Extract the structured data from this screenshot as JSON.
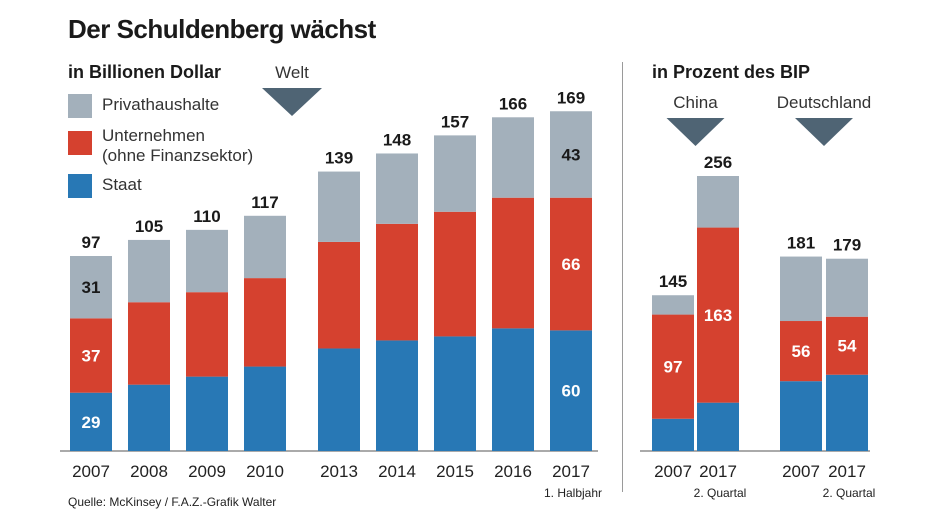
{
  "title": "Der Schuldenberg wächst",
  "source": "Quelle: McKinsey / F.A.Z.-Grafik Walter",
  "colors": {
    "privat": "#a3b0bb",
    "unternehmen": "#d5412f",
    "staat": "#2878b5"
  },
  "legend": [
    {
      "key": "privat",
      "label": "Privathaushalte"
    },
    {
      "key": "unternehmen",
      "label": "Unternehmen",
      "label2": "(ohne Finanzsektor)"
    },
    {
      "key": "staat",
      "label": "Staat"
    }
  ],
  "chart_data": [
    {
      "type": "bar",
      "stacked": true,
      "subtitle": "in Billionen Dollar",
      "group_label": "Welt",
      "categories": [
        "2007",
        "2008",
        "2009",
        "2010",
        "2013",
        "2014",
        "2015",
        "2016",
        "2017"
      ],
      "category_notes": [
        "",
        "",
        "",
        "",
        "",
        "",
        "",
        "",
        "1. Halbjahr"
      ],
      "totals": [
        97,
        105,
        110,
        117,
        139,
        148,
        157,
        166,
        169
      ],
      "series": [
        {
          "name": "Staat",
          "values": [
            29,
            33,
            37,
            42,
            51,
            55,
            57,
            61,
            60
          ],
          "labels": [
            29,
            null,
            null,
            null,
            null,
            null,
            null,
            null,
            60
          ]
        },
        {
          "name": "Unternehmen",
          "values": [
            37,
            41,
            42,
            44,
            53,
            58,
            62,
            65,
            66
          ],
          "labels": [
            37,
            null,
            null,
            null,
            null,
            null,
            null,
            null,
            66
          ]
        },
        {
          "name": "Privathaushalte",
          "values": [
            31,
            31,
            31,
            31,
            35,
            35,
            38,
            40,
            43
          ],
          "labels": [
            31,
            null,
            null,
            null,
            null,
            null,
            null,
            null,
            43
          ]
        }
      ],
      "ylim": [
        0,
        175
      ]
    },
    {
      "type": "bar",
      "stacked": true,
      "subtitle": "in Prozent des BIP",
      "groups": [
        {
          "label": "China",
          "categories": [
            "2007",
            "2017"
          ],
          "category_notes": [
            "",
            "2. Quartal"
          ],
          "totals": [
            145,
            256
          ],
          "staat": [
            30,
            45
          ],
          "unternehmen": [
            97,
            163
          ],
          "privat": [
            18,
            48
          ],
          "labels": {
            "unternehmen": [
              97,
              163
            ]
          }
        },
        {
          "label": "Deutschland",
          "categories": [
            "2007",
            "2017"
          ],
          "category_notes": [
            "",
            "2. Quartal"
          ],
          "totals": [
            181,
            179
          ],
          "staat": [
            65,
            71
          ],
          "unternehmen": [
            56,
            54
          ],
          "privat": [
            60,
            54
          ],
          "labels": {
            "unternehmen": [
              56,
              54
            ]
          }
        }
      ],
      "ylim": [
        0,
        265
      ]
    }
  ]
}
